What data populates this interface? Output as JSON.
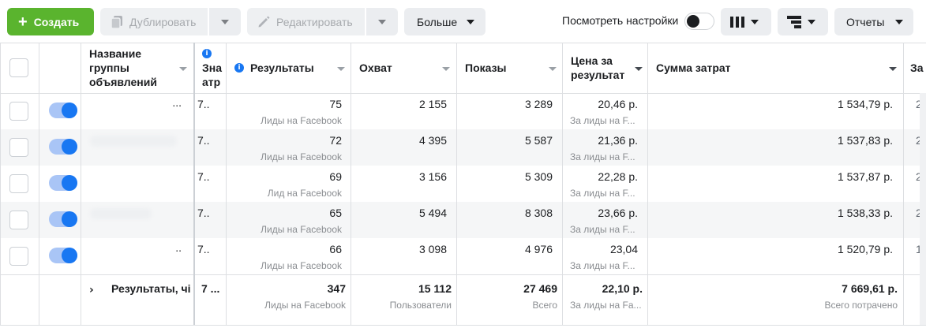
{
  "toolbar": {
    "create_label": "Создать",
    "duplicate_label": "Дублировать",
    "edit_label": "Редактировать",
    "more_label": "Больше",
    "view_settings_label": "Посмотреть настройки",
    "reports_label": "Отчеты"
  },
  "columns": {
    "name": "Название группы объявлений",
    "value_trunc": "Зна атр",
    "results": "Результаты",
    "reach": "Охват",
    "impressions": "Показы",
    "cost_per_result": "Цена за результат",
    "amount_spent": "Сумма затрат",
    "next_col": "За"
  },
  "rows": [
    {
      "name": "...",
      "value": "7..",
      "results": "75",
      "results_type": "Лиды на Facebook",
      "reach": "2 155",
      "impressions": "3 289",
      "cost": "20,46 р.",
      "cost_type": "За лиды на F...",
      "spent": "1 534,79 р.",
      "extra": "2"
    },
    {
      "name": "",
      "value": "7..",
      "results": "72",
      "results_type": "Лиды на Facebook",
      "reach": "4 395",
      "impressions": "5 587",
      "cost": "21,36 р.",
      "cost_type": "За лиды на F...",
      "spent": "1 537,83 р.",
      "extra": "2"
    },
    {
      "name": "",
      "value": "7..",
      "results": "69",
      "results_type": "Лид на Facebook",
      "reach": "3 156",
      "impressions": "5 309",
      "cost": "22,28 р.",
      "cost_type": "За лиды на F...",
      "spent": "1 537,87 р.",
      "extra": "2"
    },
    {
      "name": "",
      "value": "7..",
      "results": "65",
      "results_type": "Лиды на Facebook",
      "reach": "5 494",
      "impressions": "8 308",
      "cost": "23,66 р.",
      "cost_type": "За лиды на F...",
      "spent": "1 538,33 р.",
      "extra": "2"
    },
    {
      "name": "..",
      "value": "7..",
      "results": "66",
      "results_type": "Лиды на Facebook",
      "reach": "3 098",
      "impressions": "4 976",
      "cost": "23,04",
      "cost_type": "За лиды на F...",
      "spent": "1 520,79 р.",
      "extra": "1"
    }
  ],
  "totals": {
    "label": "Результаты, чі",
    "value": "7 ...",
    "results": "347",
    "results_type": "Лиды на Facebook",
    "reach": "15 112",
    "reach_type": "Пользователи",
    "impressions": "27 469",
    "impressions_type": "Всего",
    "cost": "22,10 р.",
    "cost_type": "За лиды на Fa...",
    "spent": "7 669,61 р.",
    "spent_type": "Всего потрачено"
  },
  "colors": {
    "primary_green": "#5ab42e",
    "toggle_blue": "#1877f2",
    "info_blue": "#1877f2"
  }
}
